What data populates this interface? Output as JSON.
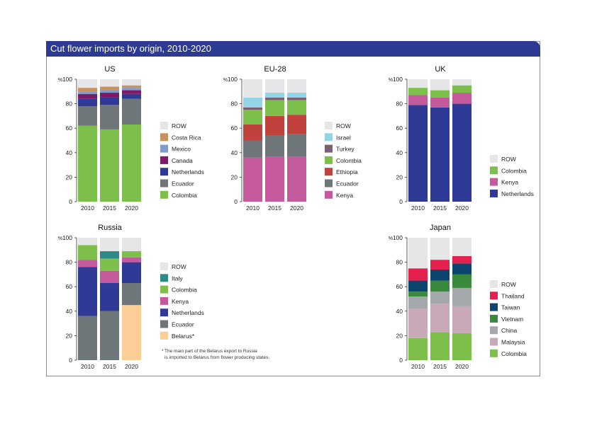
{
  "title": "Cut flower imports by origin, 2010-2020",
  "footnote": {
    "star": "*",
    "line1": "The main part of the Belarus export to Russia",
    "line2": "is imported to Belarus from flower producing states."
  },
  "colors": {
    "ROW": "#e6e6e8",
    "Costa Rica": "#c8915e",
    "Mexico": "#7f9ccc",
    "Canada": "#7e1a68",
    "Netherlands": "#2e3a96",
    "Ecuador": "#6f7679",
    "Colombia": "#7cc04b",
    "Israel": "#93d5e6",
    "Turkey": "#7b5f73",
    "Ethiopia": "#c1423d",
    "Kenya": "#c45a9c",
    "Italy": "#2e8a86",
    "Belarus*": "#fbcd97",
    "Thailand": "#e3204e",
    "Taiwan": "#0d4571",
    "Vietnam": "#3a8a3e",
    "China": "#a4a8ab",
    "Malaysia": "#c9a8b8"
  },
  "chart_data": [
    {
      "type": "bar",
      "title": "US",
      "stacked": true,
      "ylabel": "%",
      "ylim": [
        0,
        100
      ],
      "yticks": [
        0,
        20,
        40,
        60,
        80,
        100
      ],
      "categories": [
        "2010",
        "2015",
        "2020"
      ],
      "series": [
        {
          "name": "Colombia",
          "values": [
            62,
            59,
            63
          ]
        },
        {
          "name": "Ecuador",
          "values": [
            16,
            20,
            21
          ]
        },
        {
          "name": "Netherlands",
          "values": [
            6,
            6,
            4
          ]
        },
        {
          "name": "Canada",
          "values": [
            4,
            4,
            3
          ]
        },
        {
          "name": "Mexico",
          "values": [
            2,
            2,
            2
          ]
        },
        {
          "name": "Costa Rica",
          "values": [
            3,
            3,
            2
          ]
        },
        {
          "name": "ROW",
          "values": [
            7,
            6,
            5
          ]
        }
      ]
    },
    {
      "type": "bar",
      "title": "EU-28",
      "stacked": true,
      "ylabel": "%",
      "ylim": [
        0,
        100
      ],
      "yticks": [
        0,
        20,
        40,
        60,
        80,
        100
      ],
      "categories": [
        "2010",
        "2015",
        "2020"
      ],
      "series": [
        {
          "name": "Kenya",
          "values": [
            36,
            37,
            37
          ]
        },
        {
          "name": "Ecuador",
          "values": [
            14,
            17,
            18
          ]
        },
        {
          "name": "Ethiopia",
          "values": [
            13,
            16,
            16
          ]
        },
        {
          "name": "Colombia",
          "values": [
            12,
            13,
            12
          ]
        },
        {
          "name": "Turkey",
          "values": [
            2,
            2,
            2
          ]
        },
        {
          "name": "Israel",
          "values": [
            8,
            4,
            4
          ]
        },
        {
          "name": "ROW",
          "values": [
            15,
            11,
            11
          ]
        }
      ]
    },
    {
      "type": "bar",
      "title": "UK",
      "stacked": true,
      "ylabel": "%",
      "ylim": [
        0,
        100
      ],
      "yticks": [
        0,
        20,
        40,
        60,
        80,
        100
      ],
      "categories": [
        "2010",
        "2015",
        "2020"
      ],
      "series": [
        {
          "name": "Netherlands",
          "values": [
            79,
            77,
            80
          ]
        },
        {
          "name": "Kenya",
          "values": [
            8,
            8,
            9
          ]
        },
        {
          "name": "Colombia",
          "values": [
            6,
            6,
            6
          ]
        },
        {
          "name": "ROW",
          "values": [
            7,
            9,
            5
          ]
        }
      ]
    },
    {
      "type": "bar",
      "title": "Russia",
      "stacked": true,
      "ylabel": "%",
      "ylim": [
        0,
        100
      ],
      "yticks": [
        0,
        20,
        40,
        60,
        80,
        100
      ],
      "categories": [
        "2010",
        "2015",
        "2020"
      ],
      "series": [
        {
          "name": "Belarus*",
          "values": [
            0,
            0,
            45
          ]
        },
        {
          "name": "Ecuador",
          "values": [
            36,
            40,
            18
          ]
        },
        {
          "name": "Netherlands",
          "values": [
            40,
            23,
            17
          ]
        },
        {
          "name": "Kenya",
          "values": [
            6,
            10,
            4
          ]
        },
        {
          "name": "Colombia",
          "values": [
            12,
            10,
            5
          ]
        },
        {
          "name": "Italy",
          "values": [
            0,
            6,
            0
          ]
        },
        {
          "name": "ROW",
          "values": [
            6,
            11,
            11
          ]
        }
      ]
    },
    {
      "type": "bar",
      "title": "Japan",
      "stacked": true,
      "ylabel": "%",
      "ylim": [
        0,
        100
      ],
      "yticks": [
        0,
        20,
        40,
        60,
        80,
        100
      ],
      "categories": [
        "2010",
        "2015",
        "2020"
      ],
      "series": [
        {
          "name": "Colombia",
          "values": [
            18,
            23,
            22
          ]
        },
        {
          "name": "Malaysia",
          "values": [
            24,
            23,
            22
          ]
        },
        {
          "name": "China",
          "values": [
            10,
            10,
            15
          ]
        },
        {
          "name": "Vietnam",
          "values": [
            4,
            9,
            11
          ]
        },
        {
          "name": "Taiwan",
          "values": [
            9,
            9,
            9
          ]
        },
        {
          "name": "Thailand",
          "values": [
            10,
            8,
            6
          ]
        },
        {
          "name": "ROW",
          "values": [
            25,
            18,
            15
          ]
        }
      ]
    }
  ]
}
